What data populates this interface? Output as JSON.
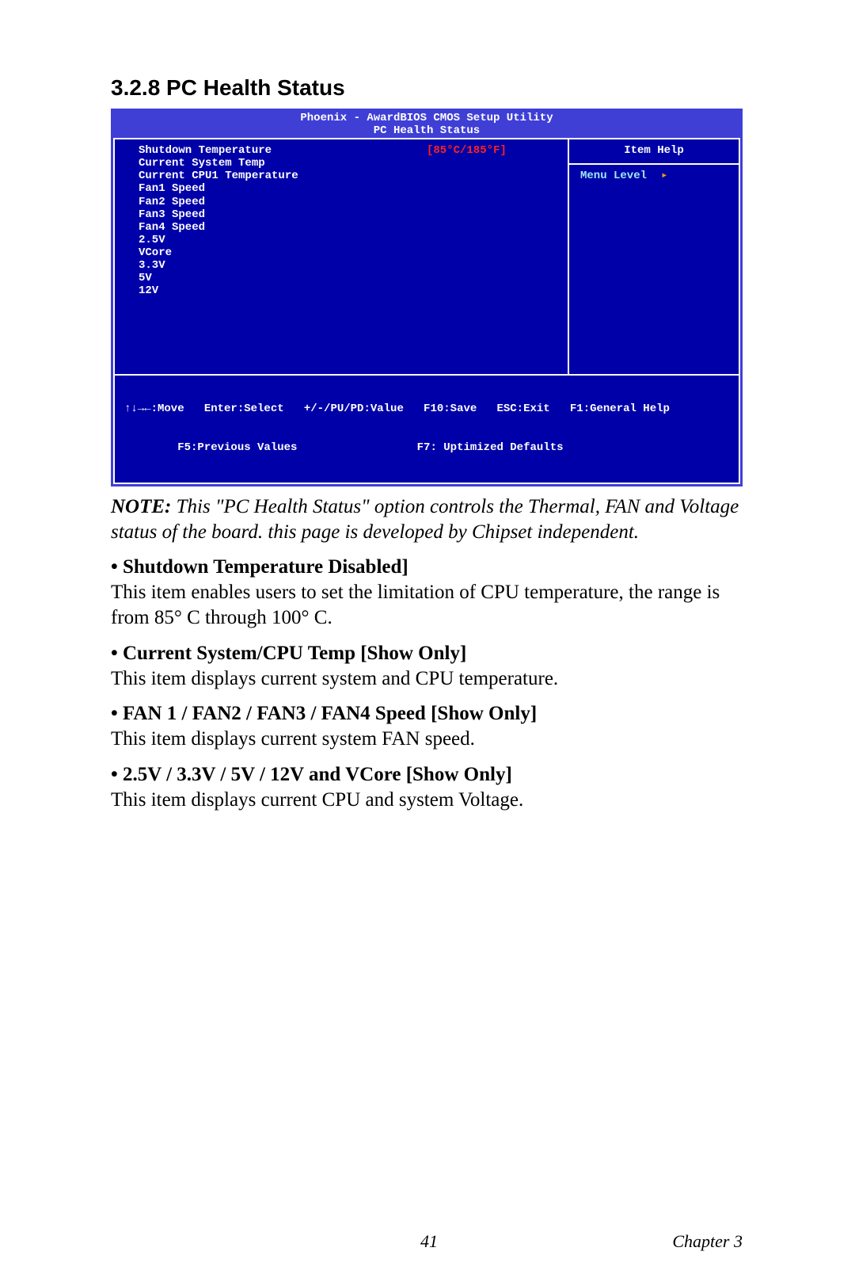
{
  "section_title": "3.2.8 PC Health Status",
  "bios": {
    "header_line1": "Phoenix - AwardBIOS CMOS Setup Utility",
    "header_line2": "PC Health Status",
    "colors": {
      "header_bg": "#3f3fd6",
      "body_bg": "#0000a8",
      "text": "#ffffff",
      "highlight": "#ff2020",
      "cyan": "#9fe7f7",
      "arrow": "#e8a000"
    },
    "left_items": [
      {
        "label": "Shutdown Temperature",
        "value": "[85°C/185°F]",
        "highlight": true
      },
      {
        "label": "Current System Temp",
        "value": "",
        "highlight": false
      },
      {
        "label": "Current CPU1 Temperature",
        "value": "",
        "highlight": false
      },
      {
        "label": "Fan1 Speed",
        "value": "",
        "highlight": false
      },
      {
        "label": "Fan2 Speed",
        "value": "",
        "highlight": false
      },
      {
        "label": "Fan3 Speed",
        "value": "",
        "highlight": false
      },
      {
        "label": "Fan4 Speed",
        "value": "",
        "highlight": false
      },
      {
        "label": "2.5V",
        "value": "",
        "highlight": false
      },
      {
        "label": "VCore",
        "value": "",
        "highlight": false
      },
      {
        "label": "3.3V",
        "value": "",
        "highlight": false
      },
      {
        "label": "5V",
        "value": "",
        "highlight": false
      },
      {
        "label": "12V",
        "value": "",
        "highlight": false
      }
    ],
    "right": {
      "item_help": "Item Help",
      "menu_level": "Menu Level",
      "arrow": "▸"
    },
    "footer_line1": "↑↓→←:Move   Enter:Select   +/-/PU/PD:Value   F10:Save   ESC:Exit   F1:General Help",
    "footer_line2": "        F5:Previous Values                  F7: Uptimized Defaults"
  },
  "note": {
    "lead": "NOTE:",
    "body": " This \"PC Health Status\" option controls the Thermal, FAN and Voltage status of the board. this page is developed by Chipset independent."
  },
  "items": [
    {
      "title": "•  Shutdown Temperature Disabled]",
      "desc": "This item enables users to set the limitation of CPU temperature, the range is from 85° C through 100° C."
    },
    {
      "title": "•  Current System/CPU Temp [Show Only]",
      "desc": "This item displays current system and CPU temperature."
    },
    {
      "title": "•  FAN 1 / FAN2 / FAN3 / FAN4 Speed [Show Only]",
      "desc": "This item displays current system FAN speed."
    },
    {
      "title": "•  2.5V / 3.3V / 5V / 12V and VCore [Show Only]",
      "desc": "This item displays current CPU and system Voltage."
    }
  ],
  "footer": {
    "page": "41",
    "chapter": "Chapter 3"
  }
}
